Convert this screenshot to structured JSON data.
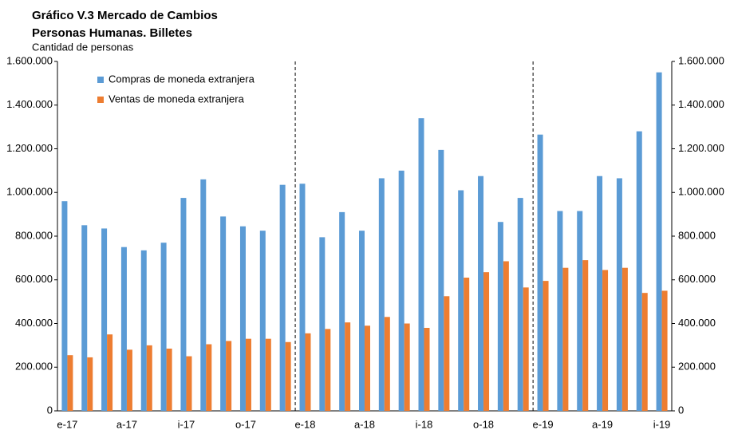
{
  "chart_data": {
    "type": "bar",
    "title": "Gráfico V.3 Mercado de Cambios",
    "subtitle": "Personas Humanas. Billetes",
    "y_axis_label": "Cantidad de personas",
    "categories": [
      "e-17",
      null,
      null,
      "a-17",
      null,
      null,
      "i-17",
      null,
      null,
      "o-17",
      null,
      null,
      "e-18",
      null,
      null,
      "a-18",
      null,
      null,
      "i-18",
      null,
      null,
      "o-18",
      null,
      null,
      "e-19",
      null,
      null,
      "a-19",
      null,
      null,
      "i-19"
    ],
    "series": [
      {
        "name": "Compras de moneda extranjera",
        "color": "#5b9bd5",
        "values": [
          960000,
          850000,
          835000,
          750000,
          735000,
          770000,
          975000,
          1060000,
          890000,
          845000,
          825000,
          1035000,
          1040000,
          795000,
          910000,
          825000,
          1065000,
          1100000,
          1340000,
          1195000,
          1010000,
          1075000,
          865000,
          975000,
          1265000,
          915000,
          915000,
          1075000,
          1065000,
          1280000,
          1550000
        ]
      },
      {
        "name": "Ventas de moneda extranjera",
        "color": "#ed7d31",
        "values": [
          255000,
          245000,
          350000,
          280000,
          300000,
          285000,
          250000,
          305000,
          320000,
          330000,
          330000,
          315000,
          355000,
          375000,
          405000,
          390000,
          430000,
          400000,
          380000,
          525000,
          610000,
          635000,
          685000,
          565000,
          595000,
          655000,
          690000,
          645000,
          655000,
          540000,
          550000
        ]
      }
    ],
    "ylim": [
      0,
      1600000
    ],
    "yticks": [
      0,
      {
        "value": 200000,
        "label": "200.000"
      },
      {
        "value": 400000,
        "label": "400.000"
      },
      {
        "value": 600000,
        "label": "600.000"
      },
      {
        "value": 800000,
        "label": "800.000"
      },
      {
        "value": 1000000,
        "label": "1.000.000"
      },
      {
        "value": 1200000,
        "label": "1.200.000"
      },
      {
        "value": 1400000,
        "label": "1.400.000"
      },
      {
        "value": 1600000,
        "label": "1.600.000"
      }
    ],
    "y2lim": [
      0,
      1600000
    ],
    "y2ticks": [
      0,
      {
        "value": 200000,
        "label": "200.000"
      },
      {
        "value": 400000,
        "label": "400.000"
      },
      {
        "value": 600000,
        "label": "600.000"
      },
      {
        "value": 800000,
        "label": "800.000"
      },
      {
        "value": 1000000,
        "label": "1.000.000"
      },
      {
        "value": 1200000,
        "label": "1.200.000"
      },
      {
        "value": 1400000,
        "label": "1.400.000"
      },
      {
        "value": 1600000,
        "label": "1.600.000"
      }
    ],
    "grid": false,
    "legend": "top-left"
  }
}
